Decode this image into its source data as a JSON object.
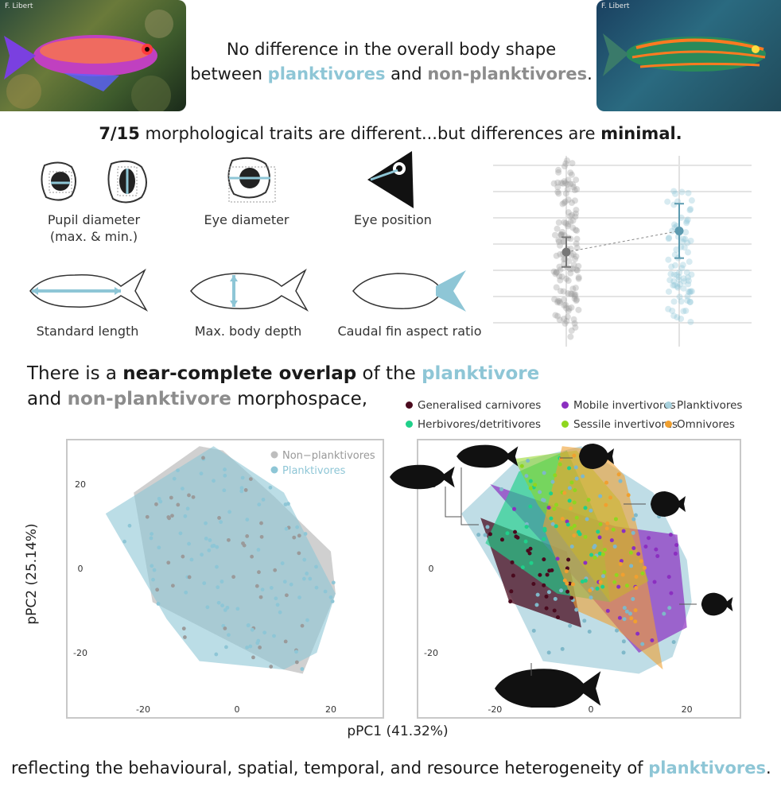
{
  "header": {
    "photo_credit_left": "F. Libert",
    "photo_credit_right": "F. Libert",
    "line1": "No difference in the overall body shape",
    "line2_prefix": "between ",
    "line2_plank": "planktivores",
    "line2_mid": " and ",
    "line2_nonplank": "non-planktivores",
    "line2_suffix": "."
  },
  "traits": {
    "count": "7/15",
    "text_a": " morphological traits are different...but differences are ",
    "minimal": "minimal."
  },
  "icons": [
    {
      "name": "pupil-diameter-icon",
      "label_1": "Pupil diameter",
      "label_2": "(max. & min.)"
    },
    {
      "name": "eye-diameter-icon",
      "label_1": "Eye diameter"
    },
    {
      "name": "eye-position-icon",
      "label_1": "Eye position"
    },
    {
      "name": "standard-length-icon",
      "label_1": "Standard length"
    },
    {
      "name": "max-body-depth-icon",
      "label_1": "Max. body depth"
    },
    {
      "name": "caudal-fin-aspect-ratio-icon",
      "label_1": "Caudal fin aspect ratio"
    }
  ],
  "overlap": {
    "line1_prefix": "There is a ",
    "line1_bold": "near-complete overlap",
    "line1_mid": " of the ",
    "line1_plank": "planktivore",
    "line2_prefix": "and ",
    "line2_nonplank": "non-planktivore",
    "line2_suffix": " morphospace,"
  },
  "legend_groups": [
    {
      "label": "Generalised carnivores",
      "color": "#4a0a1e"
    },
    {
      "label": "Mobile invertivores",
      "color": "#8b2fc0"
    },
    {
      "label": "Planktivores",
      "color": "#a9d2de"
    },
    {
      "label": "Herbivores/detritivores",
      "color": "#1fd08a"
    },
    {
      "label": "Sessile invertivores",
      "color": "#8fd61f"
    },
    {
      "label": "Omnivores",
      "color": "#f0a030"
    }
  ],
  "left_legend": {
    "non_planktivores": "Non−planktivores",
    "planktivores": "Planktivores"
  },
  "colors": {
    "planktivore": "#8ec6d6",
    "non_planktivore": "#9a9a9a"
  },
  "chart_data": [
    {
      "type": "scatter",
      "title": "",
      "xlabel": "pPC1 (41.32%)",
      "ylabel": "pPC2 (25.14%)",
      "xlim": [
        -30,
        30
      ],
      "ylim": [
        -30,
        30
      ],
      "xticks": [
        "-20",
        "0",
        "20"
      ],
      "yticks": [
        "20",
        "0",
        "-20"
      ],
      "legend": "top-right",
      "series": [
        {
          "name": "Non−planktivores",
          "hull": [
            [
              -22,
              18
            ],
            [
              -8,
              29
            ],
            [
              -3,
              28
            ],
            [
              8,
              17
            ],
            [
              20,
              4
            ],
            [
              21,
              -6
            ],
            [
              14,
              -25
            ],
            [
              10,
              -24
            ],
            [
              -18,
              -8
            ]
          ]
        },
        {
          "name": "Planktivores",
          "hull": [
            [
              -28,
              13
            ],
            [
              -5,
              29
            ],
            [
              10,
              18
            ],
            [
              21,
              -6
            ],
            [
              17,
              -20
            ],
            [
              10,
              -24
            ],
            [
              -8,
              -22
            ],
            [
              -15,
              -12
            ]
          ]
        }
      ]
    },
    {
      "type": "scatter",
      "title": "",
      "xlim": [
        -30,
        30
      ],
      "ylim": [
        -30,
        30
      ],
      "xticks": [
        "-20",
        "0",
        "20"
      ],
      "yticks": [
        "20",
        "0",
        "-20"
      ],
      "series": [
        {
          "name": "Planktivores",
          "hull": [
            [
              -27,
              13
            ],
            [
              -16,
              25
            ],
            [
              -2,
              29
            ],
            [
              13,
              18
            ],
            [
              20,
              2
            ],
            [
              21,
              -8
            ],
            [
              17,
              -21
            ],
            [
              10,
              -25
            ],
            [
              -10,
              -22
            ],
            [
              -16,
              -8
            ]
          ]
        },
        {
          "name": "Generalised carnivores",
          "hull": [
            [
              -23,
              12
            ],
            [
              -5,
              4
            ],
            [
              -2,
              -14
            ],
            [
              -17,
              -8
            ]
          ]
        },
        {
          "name": "Mobile invertivores",
          "hull": [
            [
              -21,
              20
            ],
            [
              5,
              10
            ],
            [
              18,
              8
            ],
            [
              20,
              -14
            ],
            [
              10,
              -20
            ],
            [
              -2,
              -4
            ]
          ]
        },
        {
          "name": "Herbivores/detritivores",
          "hull": [
            [
              -22,
              6
            ],
            [
              -15,
              23
            ],
            [
              -5,
              28
            ],
            [
              2,
              10
            ],
            [
              4,
              -8
            ],
            [
              -7,
              -6
            ]
          ]
        },
        {
          "name": "Sessile invertivores",
          "hull": [
            [
              -16,
              26
            ],
            [
              -3,
              28
            ],
            [
              6,
              16
            ],
            [
              12,
              -3
            ],
            [
              4,
              -8
            ],
            [
              -11,
              15
            ]
          ]
        },
        {
          "name": "Omnivores",
          "hull": [
            [
              -10,
              10
            ],
            [
              -6,
              29
            ],
            [
              2,
              28
            ],
            [
              7,
              22
            ],
            [
              10,
              8
            ],
            [
              15,
              -24
            ],
            [
              5,
              -14
            ],
            [
              -3,
              -10
            ]
          ]
        }
      ]
    },
    {
      "type": "scatter",
      "title": "",
      "series": [
        {
          "name": "Non−planktivores",
          "mean": 0.5,
          "ci": 0.3
        },
        {
          "name": "Planktivores",
          "mean": 1.1,
          "ci": 0.55
        }
      ]
    }
  ],
  "footer": {
    "text_prefix": "reflecting the behavioural, spatial, temporal, and resource heterogeneity of ",
    "plank": "planktivores",
    "suffix": "."
  }
}
